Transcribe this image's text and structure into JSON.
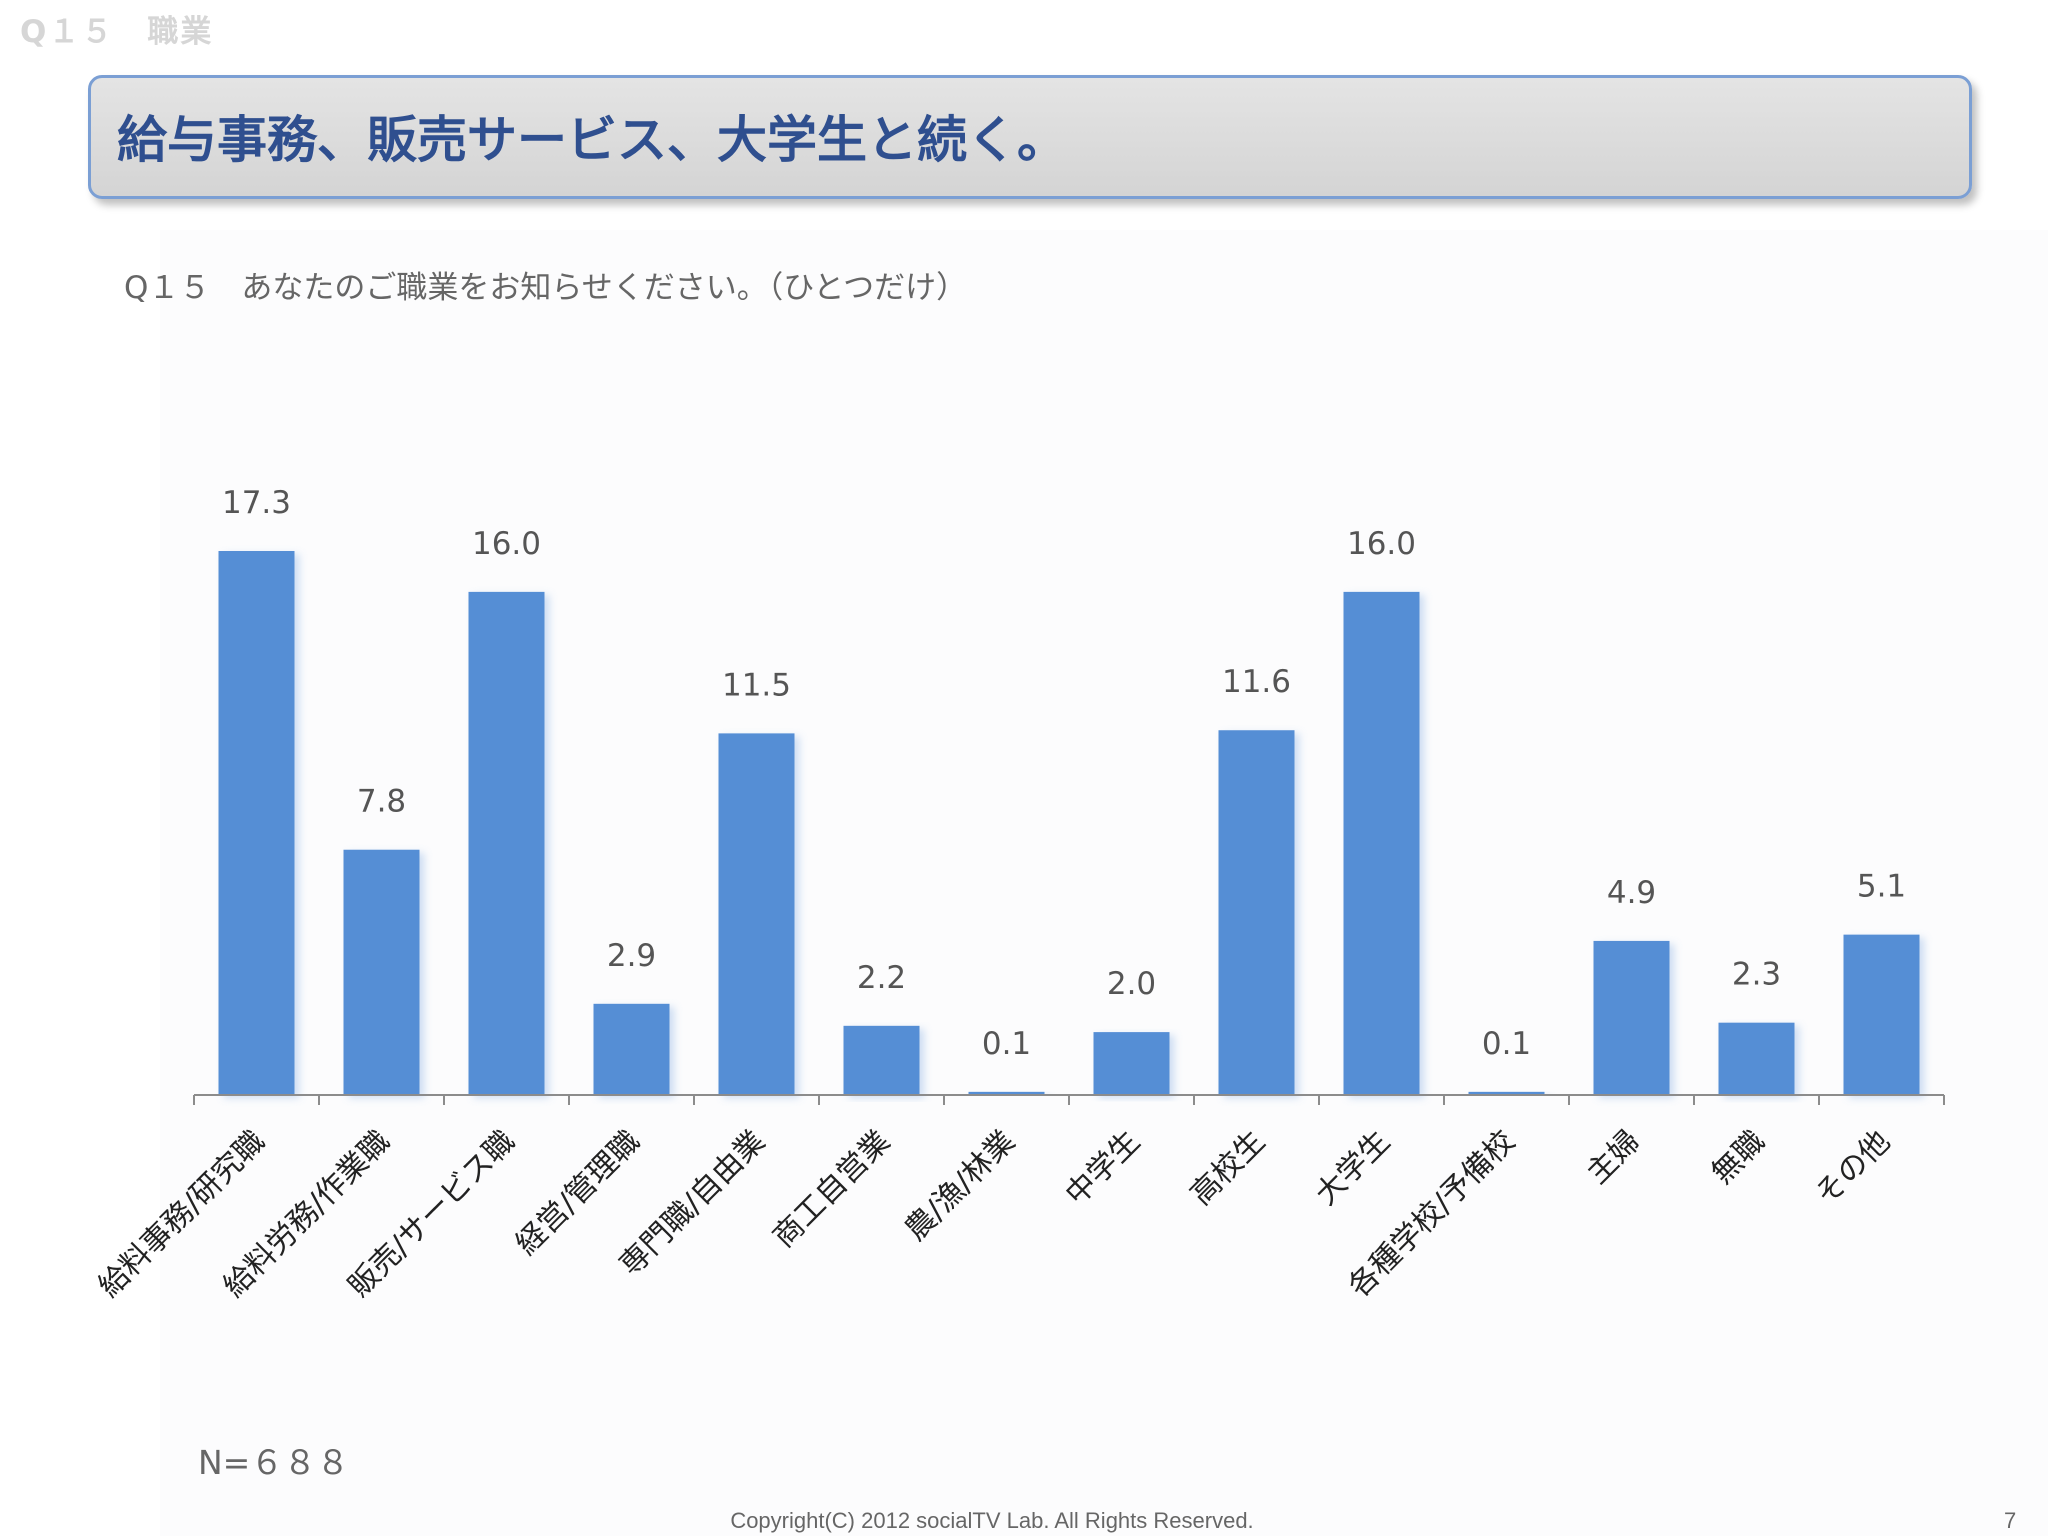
{
  "section_label": "Q１５　職業",
  "headline": "給与事務、販売サービス、大学生と続く。",
  "question": "Q１５　あなたのご職業をお知らせください。（ひとつだけ）",
  "sample_size": "N=６８８",
  "footer": {
    "copyright": "Copyright(C) 2012 socialTV Lab. All Rights Reserved.",
    "page_number": "7"
  },
  "colors": {
    "bar": "#558ed5",
    "axis": "#8c8c8c",
    "label": "#555555"
  },
  "chart_data": {
    "type": "bar",
    "categories": [
      "給料事務/研究職",
      "給料労務/作業職",
      "販売/サービス職",
      "経営/管理職",
      "専門職/自由業",
      "商工自営業",
      "農/漁/林業",
      "中学生",
      "高校生",
      "大学生",
      "各種学校/予備校",
      "主婦",
      "無職",
      "その他"
    ],
    "values": [
      17.3,
      7.8,
      16.0,
      2.9,
      11.5,
      2.2,
      0.1,
      2.0,
      11.6,
      16.0,
      0.1,
      4.9,
      2.3,
      5.1
    ],
    "value_labels": [
      "17.3",
      "7.8",
      "16.0",
      "2.9",
      "11.5",
      "2.2",
      "0.1",
      "2.0",
      "11.6",
      "16.0",
      "0.1",
      "4.9",
      "2.3",
      "5.1"
    ],
    "ylim": [
      0,
      17.3
    ],
    "grid": false,
    "legend": "none",
    "title": "",
    "xlabel": "",
    "ylabel": ""
  }
}
